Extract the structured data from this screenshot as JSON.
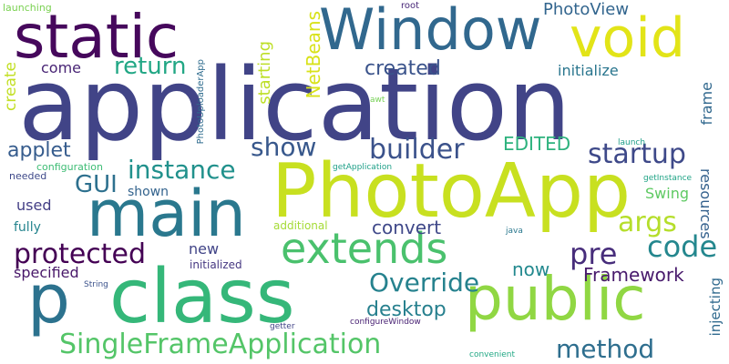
{
  "words": [
    {
      "text": "application",
      "color": "#414487"
    },
    {
      "text": "PhotoApp",
      "color": "#c8e020"
    },
    {
      "text": "static",
      "color": "#46085c"
    },
    {
      "text": "Window",
      "color": "#31688e"
    },
    {
      "text": "void",
      "color": "#e2e418"
    },
    {
      "text": "main",
      "color": "#2a788e"
    },
    {
      "text": "class",
      "color": "#35b779"
    },
    {
      "text": "public",
      "color": "#90d743"
    },
    {
      "text": "extends",
      "color": "#4ac16d"
    },
    {
      "text": "p",
      "color": "#2c728e"
    },
    {
      "text": "SingleFrameApplication",
      "color": "#54c568"
    },
    {
      "text": "Override",
      "color": "#26828e"
    },
    {
      "text": "protected",
      "color": "#440154"
    },
    {
      "text": "method",
      "color": "#2e6e8e"
    },
    {
      "text": "instance",
      "color": "#21918c"
    },
    {
      "text": "return",
      "color": "#22a785"
    },
    {
      "text": "builder",
      "color": "#3b528b"
    },
    {
      "text": "startup",
      "color": "#3e4989"
    },
    {
      "text": "show",
      "color": "#38588c"
    },
    {
      "text": "args",
      "color": "#b5de2b"
    },
    {
      "text": "pre",
      "color": "#472d7b"
    },
    {
      "text": "code",
      "color": "#24878e"
    },
    {
      "text": "GUI",
      "color": "#2d708e"
    },
    {
      "text": "convert",
      "color": "#3f4889"
    },
    {
      "text": "created",
      "color": "#3a538b"
    },
    {
      "text": "desktop",
      "color": "#27808e"
    },
    {
      "text": "now",
      "color": "#23898e"
    },
    {
      "text": "Framework",
      "color": "#481a6c"
    },
    {
      "text": "applet",
      "color": "#365c8d"
    },
    {
      "text": "EDITED",
      "color": "#2db27d"
    },
    {
      "text": "initialize",
      "color": "#2a768e"
    },
    {
      "text": "PhotoView",
      "color": "#32658e"
    },
    {
      "text": "come",
      "color": "#482475"
    },
    {
      "text": "Swing",
      "color": "#5ec962"
    },
    {
      "text": "used",
      "color": "#433e85"
    },
    {
      "text": "new",
      "color": "#414487"
    },
    {
      "text": "specified",
      "color": "#481769"
    },
    {
      "text": "fully",
      "color": "#25848e"
    },
    {
      "text": "shown",
      "color": "#33638d"
    },
    {
      "text": "additional",
      "color": "#a5db36"
    },
    {
      "text": "initialized",
      "color": "#453781"
    },
    {
      "text": "root",
      "color": "#482878"
    },
    {
      "text": "launching",
      "color": "#7ad151"
    },
    {
      "text": "configuration",
      "color": "#3dbc74"
    },
    {
      "text": "needed",
      "color": "#3e4989"
    },
    {
      "text": "getApplication",
      "color": "#1fa088"
    },
    {
      "text": "launch",
      "color": "#1f9e89"
    },
    {
      "text": "getInstance",
      "color": "#20a486"
    },
    {
      "text": "awt",
      "color": "#75d054"
    },
    {
      "text": "java",
      "color": "#2a788e"
    },
    {
      "text": "String",
      "color": "#3b528b"
    },
    {
      "text": "getter",
      "color": "#414487"
    },
    {
      "text": "configureWindow",
      "color": "#482173"
    },
    {
      "text": "convenient",
      "color": "#22a884"
    },
    {
      "text": "create",
      "color": "#c2df23"
    },
    {
      "text": "starting",
      "color": "#bddf26"
    },
    {
      "text": "NetBeans",
      "color": "#d8e219"
    },
    {
      "text": "PhotoUploaderApp",
      "color": "#2f6c8e"
    },
    {
      "text": "frame",
      "color": "#31688e"
    },
    {
      "text": "resources",
      "color": "#34618d"
    },
    {
      "text": "injecting",
      "color": "#306a8e"
    }
  ]
}
